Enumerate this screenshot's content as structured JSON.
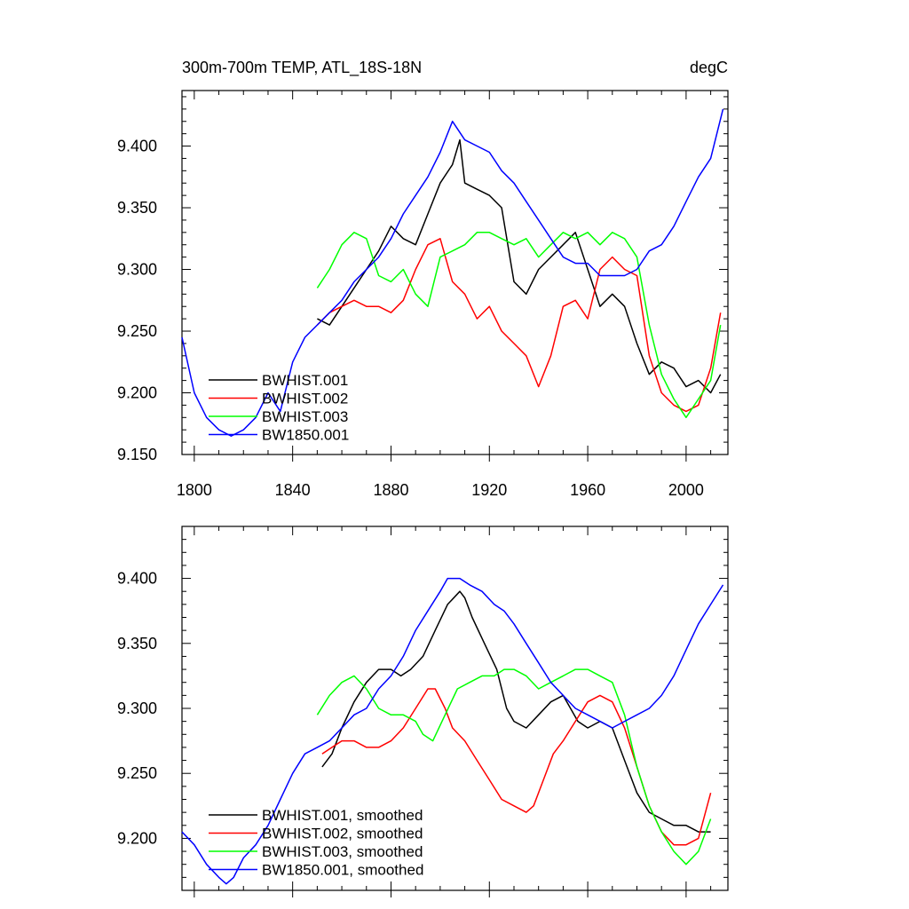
{
  "chart_data": [
    {
      "type": "line",
      "title": "300m-700m TEMP, ATL_18S-18N",
      "units": "degC",
      "xlabel": "",
      "ylabel": "",
      "xlim": [
        1795,
        2017
      ],
      "ylim": [
        9.15,
        9.445
      ],
      "xticks": [
        1800,
        1840,
        1880,
        1920,
        1960,
        2000
      ],
      "xtick_labels": [
        "1800",
        "1840",
        "1880",
        "1920",
        "1960",
        "2000"
      ],
      "yticks": [
        9.15,
        9.2,
        9.25,
        9.3,
        9.35,
        9.4
      ],
      "ytick_labels": [
        "9.150",
        "9.200",
        "9.250",
        "9.300",
        "9.350",
        "9.400"
      ],
      "legend_position": "bottom-left",
      "series": [
        {
          "name": "BWHIST.001",
          "color": "#000000",
          "x": [
            1850,
            1855,
            1860,
            1865,
            1870,
            1875,
            1880,
            1885,
            1890,
            1895,
            1900,
            1905,
            1908,
            1910,
            1915,
            1920,
            1925,
            1930,
            1935,
            1940,
            1945,
            1950,
            1955,
            1960,
            1965,
            1970,
            1975,
            1980,
            1985,
            1990,
            1995,
            2000,
            2005,
            2010,
            2014
          ],
          "y": [
            9.26,
            9.255,
            9.27,
            9.285,
            9.3,
            9.315,
            9.335,
            9.325,
            9.32,
            9.345,
            9.37,
            9.385,
            9.405,
            9.37,
            9.365,
            9.36,
            9.35,
            9.29,
            9.28,
            9.3,
            9.31,
            9.32,
            9.33,
            9.3,
            9.27,
            9.28,
            9.27,
            9.24,
            9.215,
            9.225,
            9.22,
            9.205,
            9.21,
            9.2,
            9.215
          ]
        },
        {
          "name": "BWHIST.002",
          "color": "#ff0000",
          "x": [
            1850,
            1855,
            1860,
            1865,
            1870,
            1875,
            1880,
            1885,
            1890,
            1895,
            1900,
            1905,
            1910,
            1915,
            1920,
            1925,
            1930,
            1935,
            1940,
            1945,
            1950,
            1955,
            1960,
            1965,
            1970,
            1975,
            1980,
            1985,
            1990,
            1995,
            2000,
            2005,
            2010,
            2014
          ],
          "y": [
            9.255,
            9.265,
            9.27,
            9.275,
            9.27,
            9.27,
            9.265,
            9.275,
            9.3,
            9.32,
            9.325,
            9.29,
            9.28,
            9.26,
            9.27,
            9.25,
            9.24,
            9.23,
            9.205,
            9.23,
            9.27,
            9.275,
            9.26,
            9.3,
            9.31,
            9.3,
            9.295,
            9.23,
            9.2,
            9.19,
            9.185,
            9.19,
            9.22,
            9.265
          ]
        },
        {
          "name": "BWHIST.003",
          "color": "#00ff00",
          "x": [
            1850,
            1855,
            1860,
            1865,
            1870,
            1875,
            1880,
            1885,
            1890,
            1895,
            1900,
            1905,
            1910,
            1915,
            1920,
            1925,
            1930,
            1935,
            1940,
            1945,
            1950,
            1955,
            1960,
            1965,
            1970,
            1975,
            1980,
            1985,
            1990,
            1995,
            2000,
            2005,
            2010,
            2014
          ],
          "y": [
            9.285,
            9.3,
            9.32,
            9.33,
            9.325,
            9.295,
            9.29,
            9.3,
            9.28,
            9.27,
            9.31,
            9.315,
            9.32,
            9.33,
            9.33,
            9.325,
            9.32,
            9.325,
            9.31,
            9.32,
            9.33,
            9.325,
            9.33,
            9.32,
            9.33,
            9.325,
            9.31,
            9.255,
            9.215,
            9.195,
            9.18,
            9.195,
            9.21,
            9.255
          ]
        },
        {
          "name": "BW1850.001",
          "color": "#0000ff",
          "x": [
            1795,
            1800,
            1805,
            1810,
            1815,
            1820,
            1825,
            1830,
            1835,
            1840,
            1845,
            1850,
            1855,
            1860,
            1865,
            1870,
            1875,
            1880,
            1885,
            1890,
            1895,
            1900,
            1905,
            1910,
            1915,
            1920,
            1925,
            1930,
            1935,
            1940,
            1945,
            1950,
            1955,
            1960,
            1965,
            1970,
            1975,
            1980,
            1985,
            1990,
            1995,
            2000,
            2005,
            2010,
            2015
          ],
          "y": [
            9.245,
            9.2,
            9.18,
            9.17,
            9.165,
            9.17,
            9.18,
            9.2,
            9.185,
            9.225,
            9.245,
            9.255,
            9.265,
            9.275,
            9.29,
            9.3,
            9.31,
            9.325,
            9.345,
            9.36,
            9.375,
            9.395,
            9.42,
            9.405,
            9.4,
            9.395,
            9.38,
            9.37,
            9.355,
            9.34,
            9.325,
            9.31,
            9.305,
            9.305,
            9.295,
            9.295,
            9.295,
            9.3,
            9.315,
            9.32,
            9.335,
            9.355,
            9.375,
            9.39,
            9.43
          ]
        }
      ]
    },
    {
      "type": "line",
      "title": "",
      "xlim": [
        1795,
        2017
      ],
      "ylim": [
        9.16,
        9.44
      ],
      "xticks": [
        1800,
        1840,
        1880,
        1920,
        1960,
        2000
      ],
      "yticks": [
        9.2,
        9.25,
        9.3,
        9.35,
        9.4
      ],
      "ytick_labels": [
        "9.200",
        "9.250",
        "9.300",
        "9.350",
        "9.400"
      ],
      "legend_position": "bottom-left",
      "series": [
        {
          "name": "BWHIST.001, smoothed",
          "color": "#000000",
          "x": [
            1852,
            1856,
            1860,
            1865,
            1870,
            1875,
            1880,
            1884,
            1888,
            1893,
            1898,
            1903,
            1908,
            1910,
            1913,
            1918,
            1923,
            1927,
            1930,
            1935,
            1940,
            1945,
            1950,
            1953,
            1956,
            1960,
            1965,
            1970,
            1975,
            1980,
            1985,
            1990,
            1995,
            2000,
            2005,
            2010
          ],
          "y": [
            9.255,
            9.265,
            9.285,
            9.305,
            9.32,
            9.33,
            9.33,
            9.325,
            9.33,
            9.34,
            9.36,
            9.38,
            9.39,
            9.385,
            9.37,
            9.35,
            9.33,
            9.3,
            9.29,
            9.285,
            9.295,
            9.305,
            9.31,
            9.3,
            9.29,
            9.285,
            9.29,
            9.285,
            9.26,
            9.235,
            9.22,
            9.215,
            9.21,
            9.21,
            9.205,
            9.205
          ]
        },
        {
          "name": "BWHIST.002, smoothed",
          "color": "#ff0000",
          "x": [
            1852,
            1856,
            1860,
            1865,
            1870,
            1875,
            1880,
            1885,
            1890,
            1895,
            1898,
            1902,
            1905,
            1910,
            1915,
            1920,
            1925,
            1930,
            1935,
            1938,
            1942,
            1946,
            1950,
            1955,
            1960,
            1965,
            1970,
            1975,
            1980,
            1985,
            1990,
            1995,
            2000,
            2005,
            2010
          ],
          "y": [
            9.265,
            9.27,
            9.275,
            9.275,
            9.27,
            9.27,
            9.275,
            9.285,
            9.3,
            9.315,
            9.315,
            9.3,
            9.285,
            9.275,
            9.26,
            9.245,
            9.23,
            9.225,
            9.22,
            9.225,
            9.245,
            9.265,
            9.275,
            9.29,
            9.305,
            9.31,
            9.305,
            9.285,
            9.255,
            9.225,
            9.205,
            9.195,
            9.195,
            9.2,
            9.235
          ]
        },
        {
          "name": "BWHIST.003, smoothed",
          "color": "#00ff00",
          "x": [
            1850,
            1855,
            1860,
            1865,
            1870,
            1875,
            1880,
            1885,
            1890,
            1893,
            1897,
            1902,
            1907,
            1912,
            1917,
            1922,
            1926,
            1930,
            1935,
            1940,
            1945,
            1950,
            1955,
            1960,
            1965,
            1970,
            1975,
            1980,
            1985,
            1990,
            1995,
            2000,
            2005,
            2010
          ],
          "y": [
            9.295,
            9.31,
            9.32,
            9.325,
            9.315,
            9.3,
            9.295,
            9.295,
            9.29,
            9.28,
            9.275,
            9.295,
            9.315,
            9.32,
            9.325,
            9.325,
            9.33,
            9.33,
            9.325,
            9.315,
            9.32,
            9.325,
            9.33,
            9.33,
            9.325,
            9.32,
            9.295,
            9.255,
            9.225,
            9.205,
            9.19,
            9.18,
            9.19,
            9.215
          ]
        },
        {
          "name": "BW1850.001, smoothed",
          "color": "#0000ff",
          "x": [
            1795,
            1800,
            1805,
            1810,
            1813,
            1816,
            1820,
            1825,
            1830,
            1835,
            1840,
            1845,
            1850,
            1855,
            1860,
            1865,
            1870,
            1875,
            1880,
            1885,
            1890,
            1895,
            1900,
            1903,
            1908,
            1912,
            1917,
            1922,
            1926,
            1930,
            1935,
            1940,
            1945,
            1950,
            1955,
            1960,
            1965,
            1970,
            1975,
            1980,
            1985,
            1990,
            1995,
            2000,
            2005,
            2010,
            2015
          ],
          "y": [
            9.205,
            9.195,
            9.18,
            9.17,
            9.165,
            9.17,
            9.185,
            9.195,
            9.21,
            9.23,
            9.25,
            9.265,
            9.27,
            9.275,
            9.285,
            9.295,
            9.3,
            9.315,
            9.325,
            9.34,
            9.36,
            9.375,
            9.39,
            9.4,
            9.4,
            9.395,
            9.39,
            9.38,
            9.375,
            9.365,
            9.35,
            9.335,
            9.32,
            9.31,
            9.3,
            9.295,
            9.29,
            9.285,
            9.29,
            9.295,
            9.3,
            9.31,
            9.325,
            9.345,
            9.365,
            9.38,
            9.395
          ]
        }
      ]
    }
  ]
}
